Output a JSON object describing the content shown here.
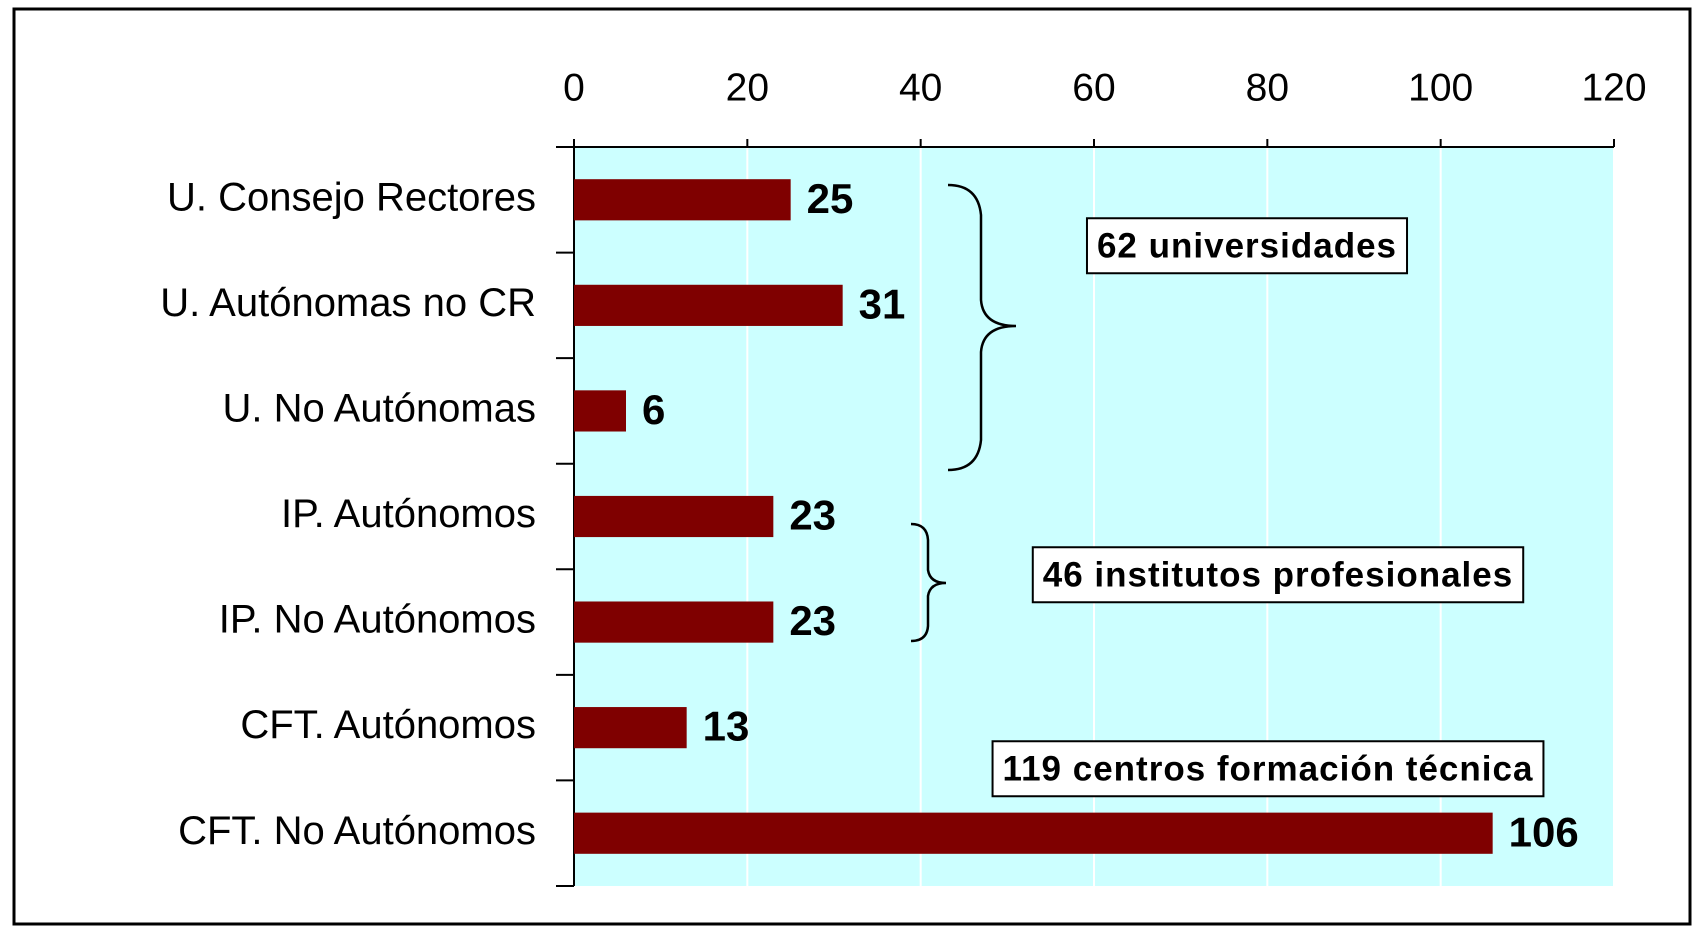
{
  "chart_data": {
    "type": "bar",
    "orientation": "horizontal",
    "categories": [
      "U. Consejo Rectores",
      "U. Autónomas no CR",
      "U. No Autónomas",
      "IP. Autónomos",
      "IP. No Autónomos",
      "CFT. Autónomos",
      "CFT. No Autónomos"
    ],
    "values": [
      25,
      31,
      6,
      23,
      23,
      13,
      106
    ],
    "color": "#7f0000",
    "xlim": [
      0,
      120
    ],
    "xticks": [
      0,
      20,
      40,
      60,
      80,
      100,
      120
    ],
    "grid": true,
    "annotations": [
      "62 universidades",
      "46 institutos profesionales",
      "119 centros formación técnica"
    ]
  }
}
